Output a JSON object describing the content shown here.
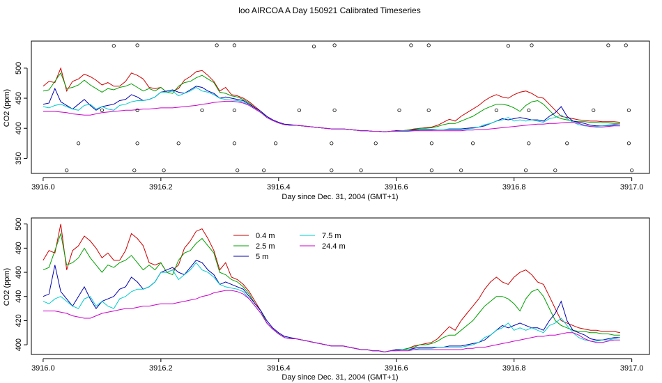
{
  "title": "loo AIRCOA A  Day 150921  Calibrated Timeseries",
  "chart_data": [
    {
      "type": "line",
      "xlabel": "Day since Dec. 31, 2004 (GMT+1)",
      "ylabel": "CO2 (ppm)",
      "xlim": [
        3915.98,
        3917.03
      ],
      "ylim": [
        325,
        545
      ],
      "xticks": [
        "3916.0",
        "3916.2",
        "3916.4",
        "3916.6",
        "3916.8",
        "3917.0"
      ],
      "yticks": [
        "350",
        "400",
        "450",
        "500"
      ],
      "x": [
        3916.0,
        3916.01,
        3916.02,
        3916.03,
        3916.04,
        3916.05,
        3916.06,
        3916.07,
        3916.08,
        3916.09,
        3916.1,
        3916.11,
        3916.12,
        3916.13,
        3916.14,
        3916.15,
        3916.16,
        3916.17,
        3916.18,
        3916.19,
        3916.2,
        3916.21,
        3916.22,
        3916.23,
        3916.24,
        3916.25,
        3916.26,
        3916.27,
        3916.28,
        3916.29,
        3916.3,
        3916.31,
        3916.32,
        3916.33,
        3916.34,
        3916.35,
        3916.36,
        3916.37,
        3916.38,
        3916.39,
        3916.4,
        3916.41,
        3916.42,
        3916.43,
        3916.44,
        3916.45,
        3916.46,
        3916.47,
        3916.48,
        3916.49,
        3916.5,
        3916.51,
        3916.52,
        3916.53,
        3916.54,
        3916.55,
        3916.56,
        3916.57,
        3916.58,
        3916.59,
        3916.6,
        3916.61,
        3916.62,
        3916.63,
        3916.64,
        3916.65,
        3916.66,
        3916.67,
        3916.68,
        3916.69,
        3916.7,
        3916.71,
        3916.72,
        3916.73,
        3916.74,
        3916.75,
        3916.76,
        3916.77,
        3916.78,
        3916.79,
        3916.8,
        3916.81,
        3916.82,
        3916.83,
        3916.84,
        3916.85,
        3916.86,
        3916.87,
        3916.88,
        3916.89,
        3916.9,
        3916.91,
        3916.92,
        3916.93,
        3916.94,
        3916.95,
        3916.96,
        3916.97,
        3916.98
      ],
      "series": [
        {
          "color": "#cc0000",
          "values": [
            470,
            478,
            476,
            500,
            462,
            478,
            482,
            490,
            486,
            480,
            472,
            476,
            470,
            470,
            478,
            492,
            488,
            482,
            468,
            466,
            468,
            460,
            462,
            466,
            480,
            486,
            494,
            496,
            488,
            478,
            462,
            468,
            456,
            454,
            450,
            444,
            436,
            428,
            418,
            413,
            409,
            406,
            405,
            405,
            404,
            403,
            402,
            401,
            400,
            399,
            399,
            399,
            398,
            397,
            396,
            396,
            395,
            395,
            394,
            395,
            396,
            396,
            397,
            399,
            400,
            401,
            402,
            405,
            410,
            415,
            412,
            420,
            426,
            432,
            438,
            446,
            452,
            456,
            452,
            450,
            456,
            460,
            462,
            458,
            452,
            450,
            440,
            430,
            420,
            418,
            416,
            414,
            413,
            412,
            412,
            411,
            411,
            411,
            410
          ]
        },
        {
          "color": "#00a000",
          "values": [
            462,
            464,
            478,
            492,
            466,
            468,
            472,
            480,
            472,
            466,
            460,
            466,
            464,
            468,
            470,
            474,
            468,
            462,
            466,
            462,
            468,
            460,
            458,
            470,
            476,
            478,
            484,
            488,
            482,
            476,
            460,
            458,
            454,
            452,
            448,
            442,
            434,
            428,
            418,
            413,
            409,
            406,
            405,
            405,
            404,
            403,
            402,
            401,
            400,
            399,
            399,
            399,
            398,
            397,
            396,
            396,
            395,
            395,
            394,
            395,
            396,
            396,
            397,
            398,
            400,
            400,
            401,
            403,
            406,
            408,
            408,
            412,
            416,
            420,
            426,
            432,
            436,
            440,
            440,
            438,
            434,
            428,
            438,
            444,
            446,
            440,
            430,
            420,
            416,
            414,
            412,
            411,
            411,
            410,
            410,
            409,
            409,
            408,
            408
          ]
        },
        {
          "color": "#0000b0",
          "values": [
            440,
            442,
            466,
            444,
            438,
            432,
            440,
            448,
            438,
            430,
            436,
            438,
            440,
            446,
            448,
            456,
            452,
            446,
            448,
            452,
            460,
            462,
            464,
            460,
            458,
            464,
            470,
            468,
            462,
            458,
            450,
            452,
            450,
            448,
            446,
            440,
            434,
            428,
            420,
            414,
            410,
            407,
            406,
            405,
            404,
            403,
            402,
            401,
            400,
            399,
            399,
            399,
            398,
            397,
            396,
            396,
            395,
            395,
            394,
            395,
            396,
            396,
            396,
            397,
            398,
            398,
            398,
            398,
            398,
            399,
            399,
            399,
            400,
            401,
            402,
            404,
            408,
            412,
            416,
            414,
            416,
            418,
            416,
            414,
            414,
            412,
            420,
            426,
            436,
            420,
            412,
            410,
            408,
            405,
            404,
            404,
            405,
            406,
            406
          ]
        },
        {
          "color": "#00cccc",
          "values": [
            436,
            434,
            438,
            440,
            436,
            432,
            430,
            438,
            440,
            432,
            436,
            432,
            430,
            438,
            440,
            444,
            446,
            446,
            448,
            452,
            460,
            460,
            462,
            454,
            458,
            462,
            468,
            462,
            460,
            456,
            450,
            448,
            447,
            446,
            444,
            438,
            432,
            426,
            418,
            413,
            409,
            406,
            405,
            405,
            404,
            403,
            402,
            401,
            400,
            399,
            399,
            399,
            398,
            397,
            396,
            396,
            395,
            395,
            394,
            395,
            395,
            396,
            396,
            396,
            397,
            397,
            397,
            398,
            398,
            398,
            398,
            398,
            399,
            400,
            402,
            406,
            408,
            412,
            414,
            418,
            412,
            414,
            412,
            414,
            412,
            410,
            416,
            418,
            422,
            416,
            410,
            406,
            404,
            403,
            403,
            404,
            404,
            405,
            406
          ]
        },
        {
          "color": "#cc00cc",
          "values": [
            428,
            428,
            428,
            427,
            426,
            424,
            423,
            422,
            422,
            424,
            426,
            427,
            428,
            429,
            430,
            430,
            431,
            432,
            432,
            433,
            434,
            434,
            434,
            435,
            436,
            437,
            438,
            440,
            441,
            443,
            444,
            445,
            445,
            444,
            442,
            438,
            432,
            426,
            418,
            413,
            409,
            406,
            405,
            405,
            404,
            403,
            402,
            401,
            400,
            399,
            399,
            399,
            398,
            397,
            396,
            396,
            395,
            395,
            394,
            395,
            395,
            395,
            395,
            396,
            396,
            396,
            396,
            396,
            396,
            396,
            396,
            396,
            397,
            397,
            398,
            398,
            399,
            400,
            401,
            402,
            403,
            404,
            405,
            406,
            407,
            407,
            408,
            408,
            409,
            410,
            410,
            408,
            405,
            403,
            402,
            402,
            403,
            404,
            404
          ]
        }
      ],
      "points": [
        {
          "x": 3916.04,
          "y": 330
        },
        {
          "x": 3916.06,
          "y": 375
        },
        {
          "x": 3916.1,
          "y": 430
        },
        {
          "x": 3916.12,
          "y": 537
        },
        {
          "x": 3916.155,
          "y": 330
        },
        {
          "x": 3916.16,
          "y": 375
        },
        {
          "x": 3916.16,
          "y": 430
        },
        {
          "x": 3916.16,
          "y": 538
        },
        {
          "x": 3916.205,
          "y": 330
        },
        {
          "x": 3916.23,
          "y": 375
        },
        {
          "x": 3916.27,
          "y": 430
        },
        {
          "x": 3916.295,
          "y": 538
        },
        {
          "x": 3916.325,
          "y": 538
        },
        {
          "x": 3916.325,
          "y": 430
        },
        {
          "x": 3916.325,
          "y": 375
        },
        {
          "x": 3916.33,
          "y": 330
        },
        {
          "x": 3916.375,
          "y": 330
        },
        {
          "x": 3916.395,
          "y": 375
        },
        {
          "x": 3916.435,
          "y": 430
        },
        {
          "x": 3916.46,
          "y": 536
        },
        {
          "x": 3916.49,
          "y": 330
        },
        {
          "x": 3916.49,
          "y": 375
        },
        {
          "x": 3916.495,
          "y": 430
        },
        {
          "x": 3916.495,
          "y": 538
        },
        {
          "x": 3916.54,
          "y": 330
        },
        {
          "x": 3916.565,
          "y": 375
        },
        {
          "x": 3916.605,
          "y": 430
        },
        {
          "x": 3916.625,
          "y": 538
        },
        {
          "x": 3916.655,
          "y": 538
        },
        {
          "x": 3916.655,
          "y": 430
        },
        {
          "x": 3916.66,
          "y": 375
        },
        {
          "x": 3916.66,
          "y": 330
        },
        {
          "x": 3916.71,
          "y": 330
        },
        {
          "x": 3916.73,
          "y": 375
        },
        {
          "x": 3916.77,
          "y": 430
        },
        {
          "x": 3916.79,
          "y": 537
        },
        {
          "x": 3916.82,
          "y": 330
        },
        {
          "x": 3916.825,
          "y": 375
        },
        {
          "x": 3916.825,
          "y": 430
        },
        {
          "x": 3916.83,
          "y": 538
        },
        {
          "x": 3916.87,
          "y": 330
        },
        {
          "x": 3916.89,
          "y": 375
        },
        {
          "x": 3916.935,
          "y": 430
        },
        {
          "x": 3916.96,
          "y": 538
        },
        {
          "x": 3916.99,
          "y": 538
        },
        {
          "x": 3916.995,
          "y": 430
        },
        {
          "x": 3916.995,
          "y": 375
        },
        {
          "x": 3917.0,
          "y": 330
        }
      ]
    },
    {
      "type": "line",
      "xlabel": "Day since Dec. 31, 2004 (GMT+1)",
      "ylabel": "CO2 (ppm)",
      "xlim": [
        3915.98,
        3917.03
      ],
      "ylim": [
        392,
        505
      ],
      "xticks": [
        "3916.0",
        "3916.2",
        "3916.4",
        "3916.6",
        "3916.8",
        "3917.0"
      ],
      "yticks": [
        "400",
        "420",
        "440",
        "460",
        "480",
        "500"
      ],
      "legend": {
        "position": "top-center",
        "labels": [
          "0.4 m",
          "2.5 m",
          "5 m",
          "7.5 m",
          "24.4 m"
        ]
      },
      "shares_series_with": 0
    }
  ]
}
